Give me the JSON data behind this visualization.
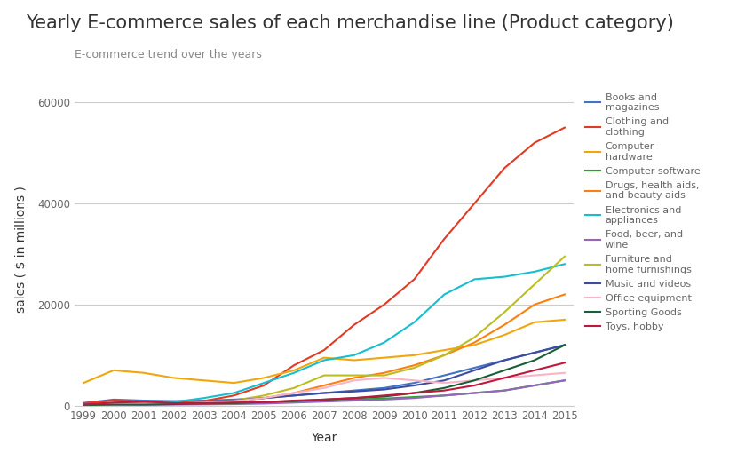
{
  "title": "Yearly E-commerce sales of each merchandise line (Product category)",
  "subtitle": "E-commerce trend over the years",
  "xlabel": "Year",
  "ylabel": "sales ( $ in millions )",
  "years": [
    1999,
    2000,
    2001,
    2002,
    2003,
    2004,
    2005,
    2006,
    2007,
    2008,
    2009,
    2010,
    2011,
    2012,
    2013,
    2014,
    2015
  ],
  "series": [
    {
      "label": "Books and\nmagazines",
      "color": "#4472c4",
      "values": [
        500,
        1200,
        1000,
        900,
        1000,
        1200,
        1500,
        2000,
        2500,
        3000,
        3500,
        4500,
        6000,
        7500,
        9000,
        10500,
        12000
      ]
    },
    {
      "label": "Clothing and\nclothing",
      "color": "#e03b24",
      "values": [
        500,
        1000,
        800,
        700,
        900,
        2000,
        4000,
        8000,
        11000,
        16000,
        20000,
        25000,
        33000,
        40000,
        47000,
        52000,
        55000
      ]
    },
    {
      "label": "Computer\nhardware",
      "color": "#f2a60d",
      "values": [
        4500,
        7000,
        6500,
        5500,
        5000,
        4500,
        5500,
        7000,
        9500,
        9000,
        9500,
        10000,
        11000,
        12000,
        14000,
        16500,
        17000
      ]
    },
    {
      "label": "Computer software",
      "color": "#2ca02c",
      "values": [
        300,
        500,
        400,
        400,
        500,
        600,
        700,
        800,
        1000,
        1200,
        1400,
        1700,
        2000,
        2500,
        3000,
        4000,
        5000
      ]
    },
    {
      "label": "Drugs, health aids,\nand beauty aids",
      "color": "#ff7f0e",
      "values": [
        200,
        400,
        300,
        400,
        500,
        800,
        1500,
        2500,
        4000,
        5500,
        6500,
        8000,
        10000,
        12500,
        16000,
        20000,
        22000
      ]
    },
    {
      "label": "Electronics and\nappliances",
      "color": "#17becf",
      "values": [
        200,
        500,
        400,
        700,
        1500,
        2500,
        4500,
        6500,
        9000,
        10000,
        12500,
        16500,
        22000,
        25000,
        25500,
        26500,
        28000
      ]
    },
    {
      "label": "Food, beer, and\nwine",
      "color": "#9467bd",
      "values": [
        100,
        200,
        150,
        200,
        250,
        300,
        400,
        600,
        800,
        1000,
        1200,
        1500,
        2000,
        2500,
        3000,
        4000,
        5000
      ]
    },
    {
      "label": "Furniture and\nhome furnishings",
      "color": "#bcbd22",
      "values": [
        100,
        300,
        300,
        400,
        600,
        1000,
        2000,
        3500,
        6000,
        6000,
        6000,
        7500,
        10000,
        13500,
        18500,
        24000,
        29500
      ]
    },
    {
      "label": "Music and videos",
      "color": "#3c4ca0",
      "values": [
        200,
        400,
        350,
        400,
        600,
        1000,
        1500,
        2000,
        2500,
        2800,
        3200,
        4000,
        5000,
        7000,
        9000,
        10500,
        12000
      ]
    },
    {
      "label": "Office equipment",
      "color": "#f9b4c8",
      "values": [
        100,
        300,
        350,
        400,
        600,
        900,
        1500,
        2500,
        3500,
        5000,
        5500,
        5000,
        4500,
        5000,
        5500,
        6000,
        6500
      ]
    },
    {
      "label": "Sporting Goods",
      "color": "#1a5e38",
      "values": [
        100,
        200,
        200,
        300,
        400,
        500,
        700,
        900,
        1200,
        1500,
        1800,
        2500,
        3500,
        5000,
        7000,
        9000,
        12000
      ]
    },
    {
      "label": "Toys, hobby",
      "color": "#c0173c",
      "values": [
        200,
        600,
        800,
        500,
        500,
        600,
        700,
        1000,
        1200,
        1500,
        2000,
        2500,
        3000,
        4000,
        5500,
        7000,
        8500
      ]
    }
  ],
  "ylim": [
    0,
    62000
  ],
  "yticks": [
    0,
    20000,
    40000,
    60000
  ],
  "bg_color": "#ffffff",
  "grid_color": "#cccccc",
  "title_fontsize": 15,
  "subtitle_fontsize": 9,
  "axis_label_fontsize": 10,
  "tick_fontsize": 8.5,
  "legend_fontsize": 8
}
